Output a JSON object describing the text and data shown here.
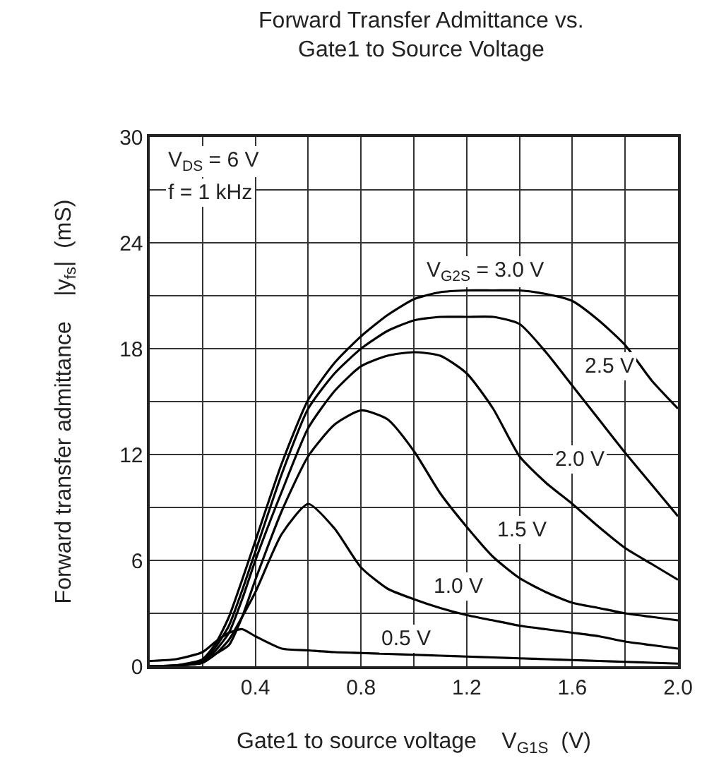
{
  "chart_data": {
    "type": "line",
    "title": "Forward Transfer Admittance vs.\nGate1 to Source Voltage",
    "xlabel": "Gate1 to source voltage    V$_{G1S}$  (V)",
    "ylabel": "Forward transfer admittance    |y$_{fs}$|  (mS)",
    "x": [
      0,
      0.1,
      0.2,
      0.25,
      0.3,
      0.35,
      0.4,
      0.5,
      0.6,
      0.7,
      0.8,
      0.9,
      1.0,
      1.1,
      1.2,
      1.3,
      1.4,
      1.5,
      1.6,
      1.7,
      1.8,
      1.9,
      2.0
    ],
    "series": [
      {
        "color": "#000000",
        "values": [
          0.3,
          0.4,
          0.8,
          1.4,
          1.9,
          2.1,
          1.7,
          1.0,
          0.9,
          0.8,
          0.75,
          0.7,
          0.65,
          0.6,
          0.55,
          0.5,
          0.45,
          0.4,
          0.35,
          0.3,
          0.25,
          0.2,
          0.15
        ]
      },
      {
        "color": "#000000",
        "values": [
          0,
          0.05,
          0.2,
          0.7,
          1.5,
          2.8,
          4.2,
          7.5,
          9.2,
          7.8,
          5.6,
          4.4,
          3.8,
          3.3,
          2.9,
          2.6,
          2.3,
          2.1,
          1.9,
          1.7,
          1.4,
          1.2,
          1.0
        ]
      },
      {
        "color": "#000000",
        "values": [
          0,
          0.05,
          0.2,
          0.7,
          1.2,
          2.8,
          4.9,
          8.8,
          11.9,
          13.7,
          14.5,
          14.0,
          12.2,
          9.8,
          7.9,
          6.2,
          5.0,
          4.2,
          3.6,
          3.3,
          3.0,
          2.8,
          2.6
        ]
      },
      {
        "color": "#000000",
        "values": [
          0,
          0.05,
          0.2,
          0.9,
          1.9,
          3.8,
          6.0,
          9.9,
          13.5,
          15.6,
          17.0,
          17.6,
          17.8,
          17.6,
          16.6,
          14.6,
          11.9,
          10.4,
          9.2,
          7.9,
          6.7,
          5.8,
          4.9
        ]
      },
      {
        "color": "#000000",
        "values": [
          0,
          0.05,
          0.3,
          1.1,
          2.3,
          4.3,
          6.5,
          10.9,
          14.6,
          16.6,
          18.0,
          19.0,
          19.6,
          19.8,
          19.8,
          19.8,
          19.4,
          17.8,
          15.9,
          14.0,
          12.1,
          10.3,
          8.5
        ]
      },
      {
        "color": "#000000",
        "values": [
          0,
          0.05,
          0.4,
          1.3,
          2.8,
          4.9,
          7.1,
          11.5,
          15.1,
          17.2,
          18.7,
          19.9,
          20.8,
          21.2,
          21.3,
          21.3,
          21.3,
          21.1,
          20.7,
          19.6,
          18.2,
          16.2,
          14.6
        ]
      }
    ],
    "annotations": [
      "V$_{DS}$ = 6 V",
      "f = 1 kHz",
      "V$_{G2S}$ = 3.0 V",
      {
        "text": "2.5 V",
        "x": 1.74,
        "y": 17
      },
      {
        "text": "2.0 V",
        "x": 1.63,
        "y": 11.7
      },
      {
        "text": "1.5 V",
        "x": 1.41,
        "y": 7.7
      },
      {
        "text": "1.0 V",
        "x": 1.17,
        "y": 4.5
      },
      {
        "text": "0.5 V",
        "x": 0.97,
        "y": 1.6
      }
    ],
    "xlim": [
      0,
      2.0
    ],
    "ylim": [
      0,
      30
    ],
    "xticks": [
      {
        "value": 0,
        "label": null
      },
      {
        "value": 0.2,
        "label": null
      },
      0.4,
      {
        "value": 0.6,
        "label": null
      },
      0.8,
      {
        "value": 1.0,
        "label": null
      },
      1.2,
      {
        "value": 1.4,
        "label": null
      },
      1.6,
      {
        "value": 1.8,
        "label": null
      },
      {
        "value": 2.0,
        "label": "2.0"
      }
    ],
    "yticks": [
      0,
      {
        "value": 3,
        "label": null
      },
      6,
      {
        "value": 9,
        "label": null
      },
      12,
      {
        "value": 15,
        "label": null
      },
      18,
      {
        "value": 21,
        "label": null
      },
      24,
      {
        "value": 27,
        "label": null
      },
      30
    ],
    "grid": true,
    "marker": "none",
    "line_style": "solid"
  }
}
